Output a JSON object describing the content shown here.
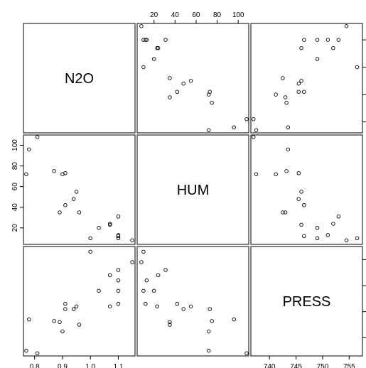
{
  "chart_data": {
    "type": "scatter",
    "variables": [
      "N2O",
      "HUM",
      "PRESS"
    ],
    "axis_ranges": {
      "N2O": [
        0.76,
        1.16
      ],
      "HUM": [
        4,
        110
      ],
      "PRESS": [
        736.5,
        757.5
      ]
    },
    "ticks": {
      "N2O": [
        0.8,
        0.9,
        1.0,
        1.1
      ],
      "HUM": [
        20,
        40,
        60,
        80,
        100
      ],
      "PRESS": [
        740,
        745,
        750,
        755
      ]
    },
    "tick_labels": {
      "N2O": [
        "0.8",
        "0.9",
        "1.0",
        "1.1"
      ],
      "HUM": [
        "20",
        "40",
        "60",
        "80",
        "100"
      ],
      "PRESS": [
        "740",
        "745",
        "750",
        "755"
      ]
    },
    "grid": false,
    "observations": [
      {
        "N2O": 0.77,
        "HUM": 72,
        "PRESS": 737.5
      },
      {
        "N2O": 0.78,
        "HUM": 96,
        "PRESS": 743.5
      },
      {
        "N2O": 0.81,
        "HUM": 108,
        "PRESS": 737.0
      },
      {
        "N2O": 0.87,
        "HUM": 75,
        "PRESS": 743.2
      },
      {
        "N2O": 0.89,
        "HUM": 35,
        "PRESS": 743.0
      },
      {
        "N2O": 0.9,
        "HUM": 72,
        "PRESS": 741.2
      },
      {
        "N2O": 0.91,
        "HUM": 73,
        "PRESS": 745.5
      },
      {
        "N2O": 0.91,
        "HUM": 42,
        "PRESS": 746.5
      },
      {
        "N2O": 0.94,
        "HUM": 48,
        "PRESS": 745.5
      },
      {
        "N2O": 0.95,
        "HUM": 55,
        "PRESS": 746.0
      },
      {
        "N2O": 0.96,
        "HUM": 35,
        "PRESS": 742.5
      },
      {
        "N2O": 1.0,
        "HUM": 10,
        "PRESS": 756.5
      },
      {
        "N2O": 1.03,
        "HUM": 20,
        "PRESS": 749.0
      },
      {
        "N2O": 1.07,
        "HUM": 23,
        "PRESS": 746.0
      },
      {
        "N2O": 1.07,
        "HUM": 24,
        "PRESS": 752.0
      },
      {
        "N2O": 1.1,
        "HUM": 31,
        "PRESS": 753.0
      },
      {
        "N2O": 1.1,
        "HUM": 13,
        "PRESS": 751.0
      },
      {
        "N2O": 1.1,
        "HUM": 10,
        "PRESS": 749.0
      },
      {
        "N2O": 1.1,
        "HUM": 12,
        "PRESS": 746.5
      },
      {
        "N2O": 1.15,
        "HUM": 8,
        "PRESS": 754.5
      }
    ]
  }
}
